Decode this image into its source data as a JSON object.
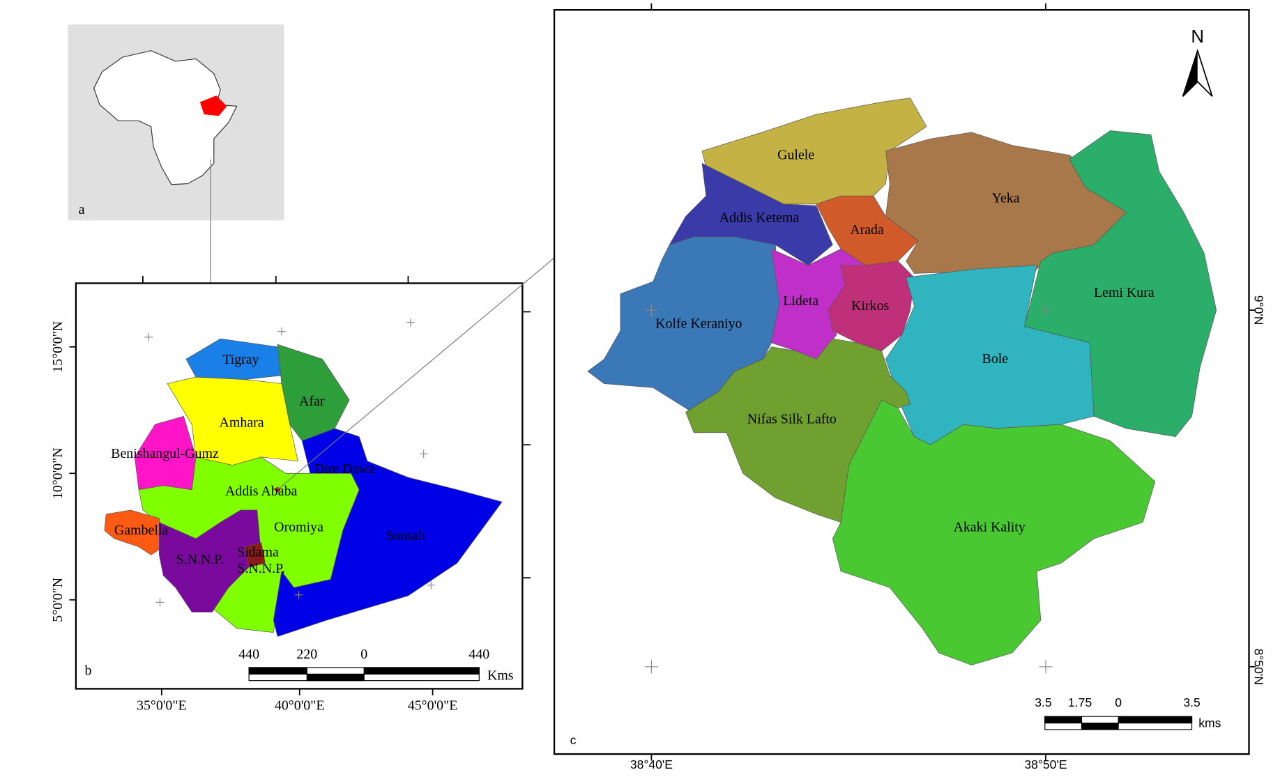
{
  "panel_a": {
    "label": "a"
  },
  "panel_b": {
    "label": "b",
    "regions": [
      "Tigray",
      "Afar",
      "Amhara",
      "Benishangul-Gumz",
      "Dire Dawa",
      "Addis Ababa",
      "Oromiya",
      "Somali",
      "Gambella",
      "S.N.N.P.",
      "Sidama",
      "S.N.N.P."
    ],
    "lat_labels": [
      "15°0'0\"N",
      "10°0'0\"N",
      "5°0'0\"N"
    ],
    "lon_labels": [
      "35°0'0\"E",
      "40°0'0\"E",
      "45°0'0\"E"
    ],
    "scale_labels": [
      "440",
      "220",
      "0",
      "440"
    ],
    "scale_unit": "Kms"
  },
  "panel_c": {
    "label": "c",
    "north": "N",
    "subcities": [
      "Gulele",
      "Addis Ketema",
      "Arada",
      "Yeka",
      "Lideta",
      "Kirkos",
      "Kolfe Keraniyo",
      "Lemi Kura",
      "Bole",
      "Nifas Silk Lafto",
      "Akaki Kality"
    ],
    "lat_labels": [
      "9°0'N",
      "8°50'N"
    ],
    "lon_labels": [
      "38°40'E",
      "38°50'E"
    ],
    "scale_labels": [
      "3.5",
      "1.75",
      "0",
      "3.5"
    ],
    "scale_unit": "kms"
  }
}
